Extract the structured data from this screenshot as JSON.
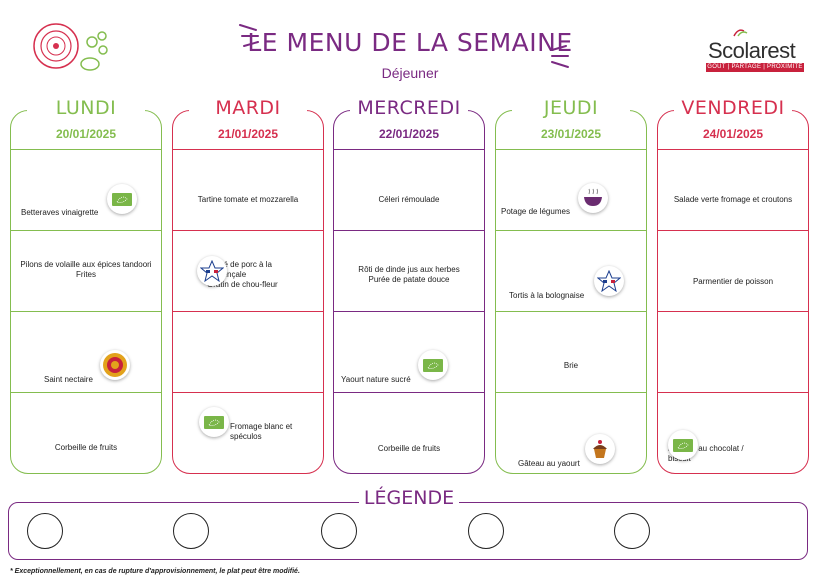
{
  "header": {
    "title": "LE MENU DE LA SEMAINE",
    "subtitle": "Déjeuner",
    "brand_name": "Scolarest",
    "brand_tagline": "GOÛT | PARTAGE | PROXIMITÉ",
    "brand_color": "#c8213c",
    "accent_color": "#7a2a82"
  },
  "days": [
    {
      "name": "LUNDI",
      "date": "20/01/2025",
      "color": "#84bd4f",
      "dishes": [
        {
          "lines": [
            "Betteraves vinaigrette"
          ],
          "badge": "organic-label-icon"
        },
        {
          "lines": [
            "Pilons de volaille aux épices tandoori",
            "Frites"
          ],
          "badge": ""
        },
        {
          "lines": [
            "Saint nectaire"
          ],
          "badge": "aop-label-icon"
        },
        {
          "lines": [
            "Corbeille de fruits"
          ],
          "badge": ""
        }
      ]
    },
    {
      "name": "MARDI",
      "date": "21/01/2025",
      "color": "#d6304f",
      "dishes": [
        {
          "lines": [
            "Tartine tomate et mozzarella"
          ],
          "badge": ""
        },
        {
          "lines": [
            "Sauté de porc à la",
            "provençale",
            "Gratin de chou-fleur"
          ],
          "badge": "french-pork-label-icon"
        },
        {
          "lines": [],
          "badge": ""
        },
        {
          "lines": [
            "Fromage blanc et",
            "spéculos"
          ],
          "badge": "organic-label-icon"
        }
      ]
    },
    {
      "name": "MERCREDI",
      "date": "22/01/2025",
      "color": "#7a2a82",
      "dishes": [
        {
          "lines": [
            "Céleri rémoulade"
          ],
          "badge": ""
        },
        {
          "lines": [
            "Rôti de dinde jus aux herbes",
            "Purée de patate douce"
          ],
          "badge": ""
        },
        {
          "lines": [
            "Yaourt nature sucré"
          ],
          "badge": "organic-label-icon"
        },
        {
          "lines": [
            "Corbeille de fruits"
          ],
          "badge": ""
        }
      ]
    },
    {
      "name": "JEUDI",
      "date": "23/01/2025",
      "color": "#84bd4f",
      "dishes": [
        {
          "lines": [
            "Potage de légumes"
          ],
          "badge": "homemade-soup-icon"
        },
        {
          "lines": [
            "Tortis à la bolognaise"
          ],
          "badge": "french-beef-label-icon"
        },
        {
          "lines": [
            "Brie"
          ],
          "badge": ""
        },
        {
          "lines": [
            "Gâteau au yaourt"
          ],
          "badge": "homemade-cake-icon"
        }
      ]
    },
    {
      "name": "VENDREDI",
      "date": "24/01/2025",
      "color": "#d6304f",
      "dishes": [
        {
          "lines": [
            "Salade verte fromage et croutons"
          ],
          "badge": ""
        },
        {
          "lines": [
            "Parmentier de poisson"
          ],
          "badge": ""
        },
        {
          "lines": [],
          "badge": ""
        },
        {
          "lines": [
            "Mousse au chocolat /",
            "biscuit"
          ],
          "badge": "organic-label-icon"
        }
      ]
    }
  ],
  "legend": {
    "title": "LÉGENDE"
  },
  "footnote": "* Exceptionnellement, en cas de rupture d'approvisionnement, le plat peut être modifié."
}
